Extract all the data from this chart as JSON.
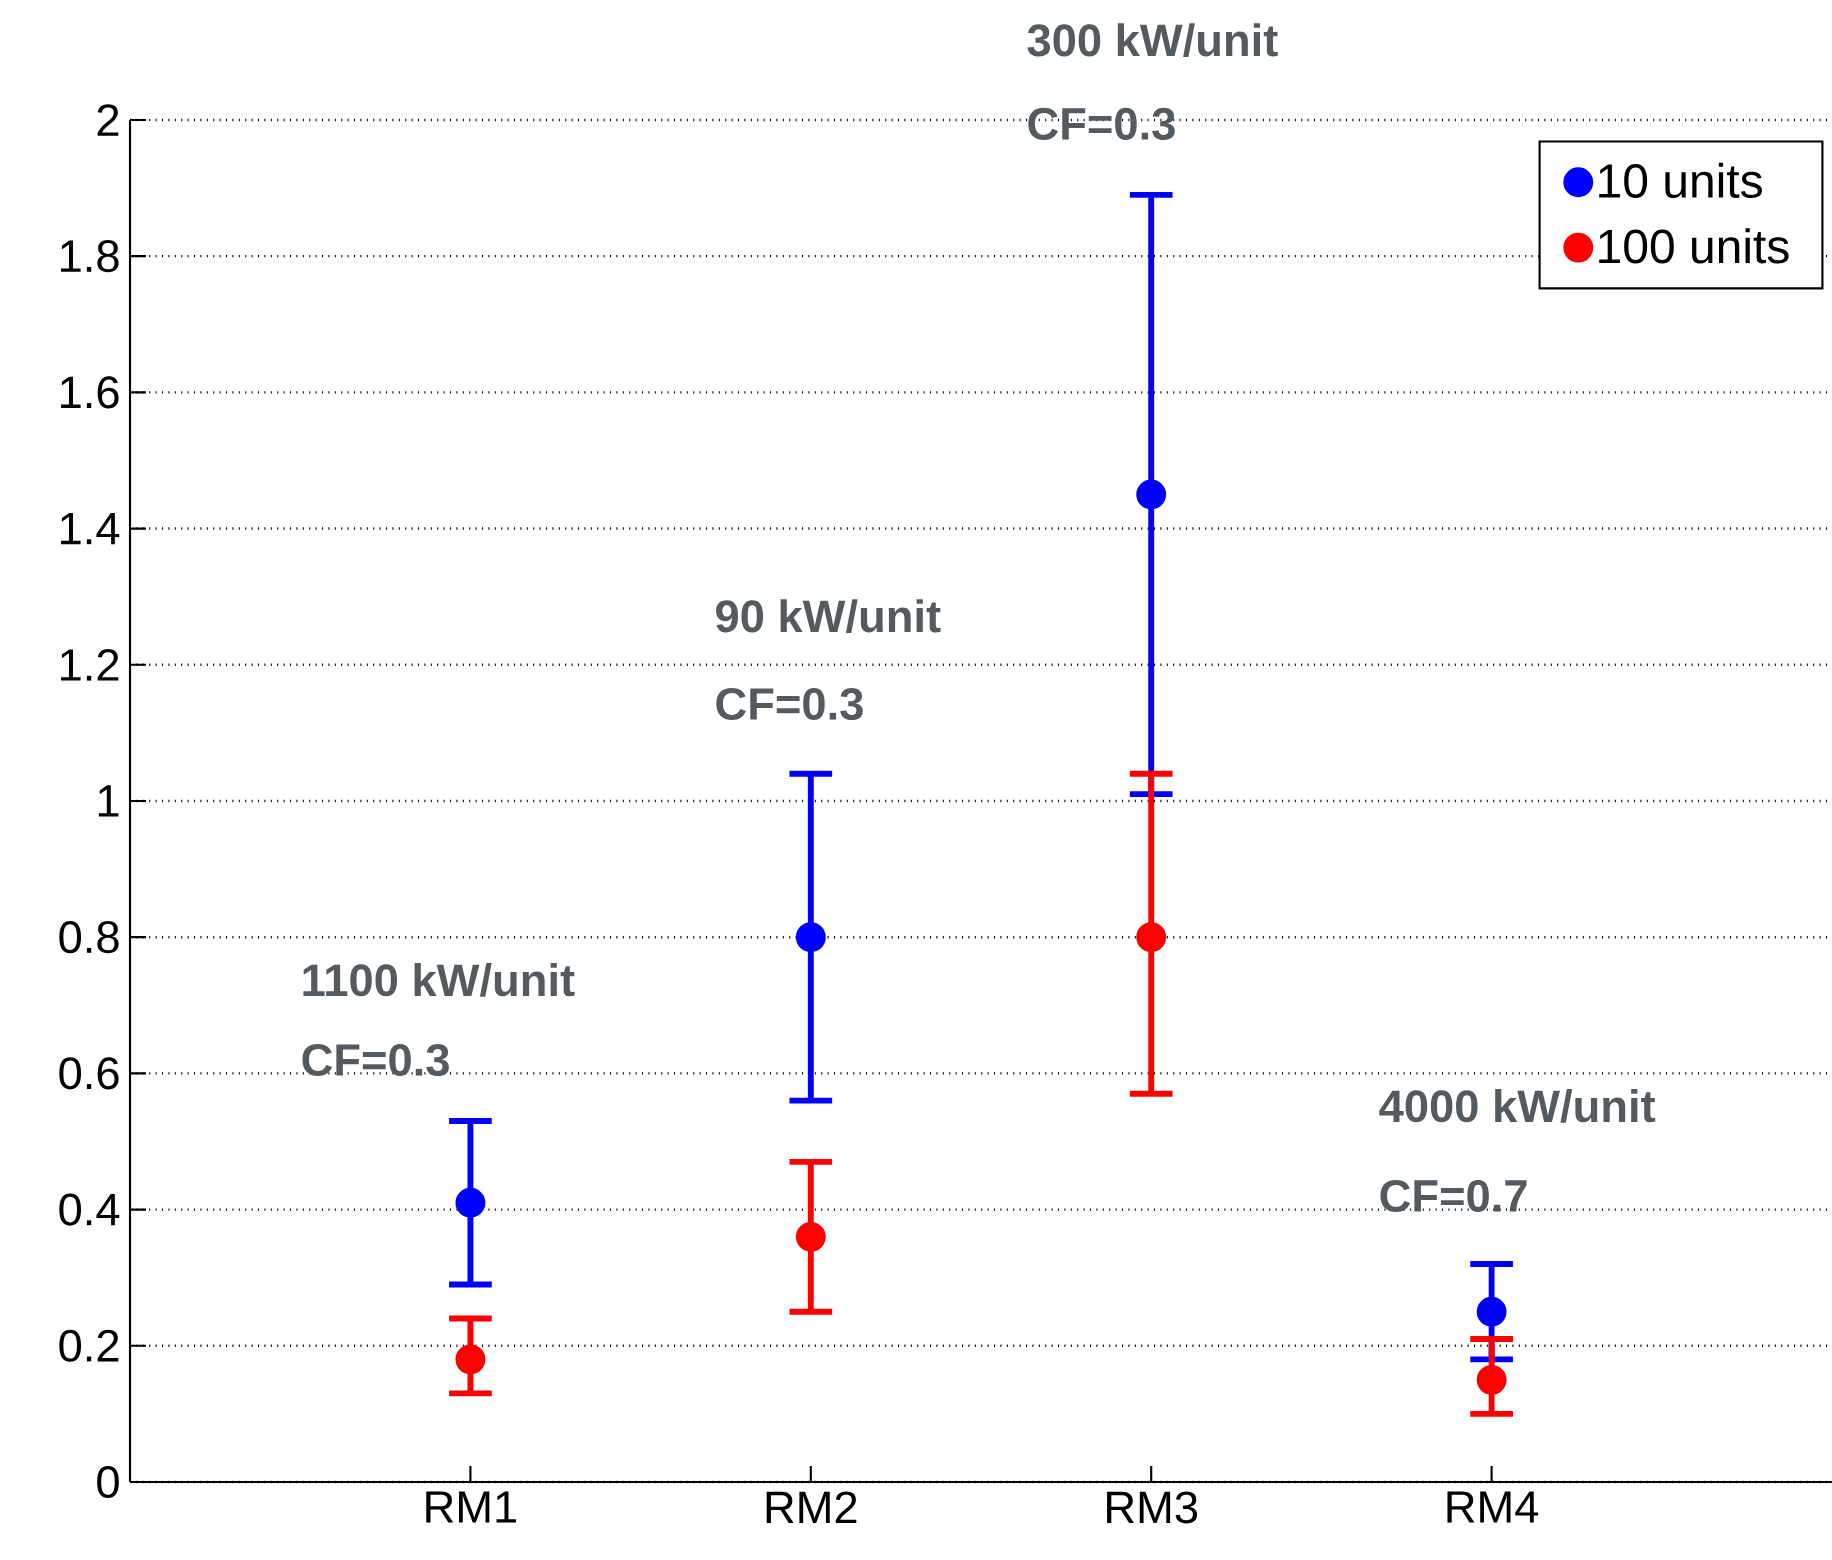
{
  "chart_data": {
    "type": "scatter",
    "categories": [
      "RM1",
      "RM2",
      "RM3",
      "RM4"
    ],
    "series": [
      {
        "name": "10 units",
        "color": "#0000ff",
        "values": [
          0.41,
          0.8,
          1.45,
          0.25
        ],
        "errors": [
          [
            0.29,
            0.53
          ],
          [
            0.56,
            1.04
          ],
          [
            1.01,
            1.89
          ],
          [
            0.18,
            0.32
          ]
        ]
      },
      {
        "name": "100 units",
        "color": "#ff0000",
        "values": [
          0.18,
          0.36,
          0.8,
          0.15
        ],
        "errors": [
          [
            0.13,
            0.24
          ],
          [
            0.25,
            0.47
          ],
          [
            0.57,
            1.04
          ],
          [
            0.1,
            0.21
          ]
        ]
      }
    ],
    "ylim": [
      0,
      2
    ],
    "yticks": [
      0,
      0.2,
      0.4,
      0.6,
      0.8,
      1,
      1.2,
      1.4,
      1.6,
      1.8,
      2
    ],
    "grid": "y",
    "legend": "top right",
    "marker": "circle",
    "annotations": [
      "1100 kW/unit",
      "CF=0.3",
      "90 kW/unit",
      "CF=0.3",
      "300 kW/unit",
      "CF=0.3",
      "4000 kW/unit",
      "CF=0.7"
    ]
  }
}
